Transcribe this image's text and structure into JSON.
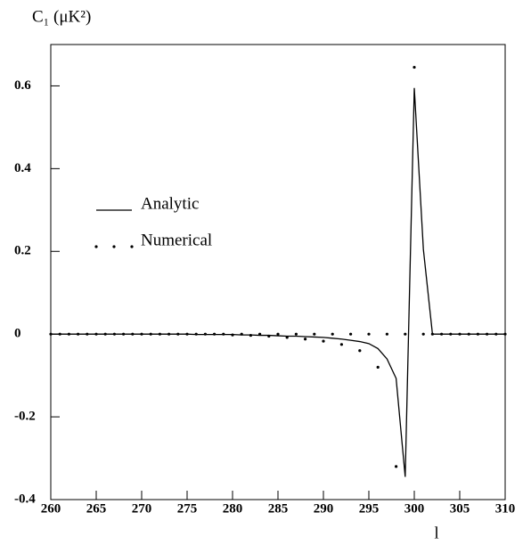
{
  "chart_data": {
    "type": "line",
    "y_label": "C₁ (μK²)",
    "x_label": "l",
    "x": [
      260,
      261,
      262,
      263,
      264,
      265,
      266,
      267,
      268,
      269,
      270,
      271,
      272,
      273,
      274,
      275,
      276,
      277,
      278,
      279,
      280,
      281,
      282,
      283,
      284,
      285,
      286,
      287,
      288,
      289,
      290,
      291,
      292,
      293,
      294,
      295,
      296,
      297,
      298,
      299,
      300,
      301,
      302,
      303,
      304,
      305,
      306,
      307,
      308,
      309,
      310
    ],
    "series": [
      {
        "name": "Analytic",
        "color": "#000000",
        "style": "line",
        "values": [
          0,
          0,
          0,
          0,
          0,
          0,
          0,
          0,
          0,
          0,
          0,
          0,
          0,
          0,
          0,
          0,
          -0.001,
          -0.001,
          -0.001,
          -0.001,
          -0.001,
          -0.002,
          -0.002,
          -0.003,
          -0.003,
          -0.004,
          -0.005,
          -0.005,
          -0.006,
          -0.007,
          -0.008,
          -0.01,
          -0.012,
          -0.015,
          -0.018,
          -0.023,
          -0.035,
          -0.06,
          -0.107,
          -0.345,
          0.595,
          0.205,
          0,
          0,
          0,
          0,
          0,
          0,
          0,
          0,
          0
        ]
      },
      {
        "name": "Numerical",
        "color": "#000000",
        "style": "dots",
        "values": [
          0,
          0,
          0,
          0,
          0,
          0,
          0,
          0,
          0,
          0,
          0,
          0,
          0,
          0,
          0,
          0,
          0,
          0,
          0,
          0,
          -0.002,
          0,
          -0.003,
          0,
          -0.005,
          0,
          -0.008,
          0,
          -0.012,
          0,
          -0.017,
          0,
          -0.025,
          0,
          -0.04,
          0,
          -0.08,
          0,
          -0.32,
          0,
          0.645,
          0,
          0,
          0,
          0,
          0,
          0,
          0,
          0,
          0,
          0
        ]
      }
    ],
    "xlim": [
      260,
      310
    ],
    "ylim": [
      -0.4,
      0.7
    ],
    "xticks": [
      260,
      265,
      270,
      275,
      280,
      285,
      290,
      295,
      300,
      305,
      310
    ],
    "yticks": [
      -0.4,
      -0.2,
      0,
      0.2,
      0.4,
      0.6
    ],
    "legend": "upper left",
    "grid": false
  }
}
